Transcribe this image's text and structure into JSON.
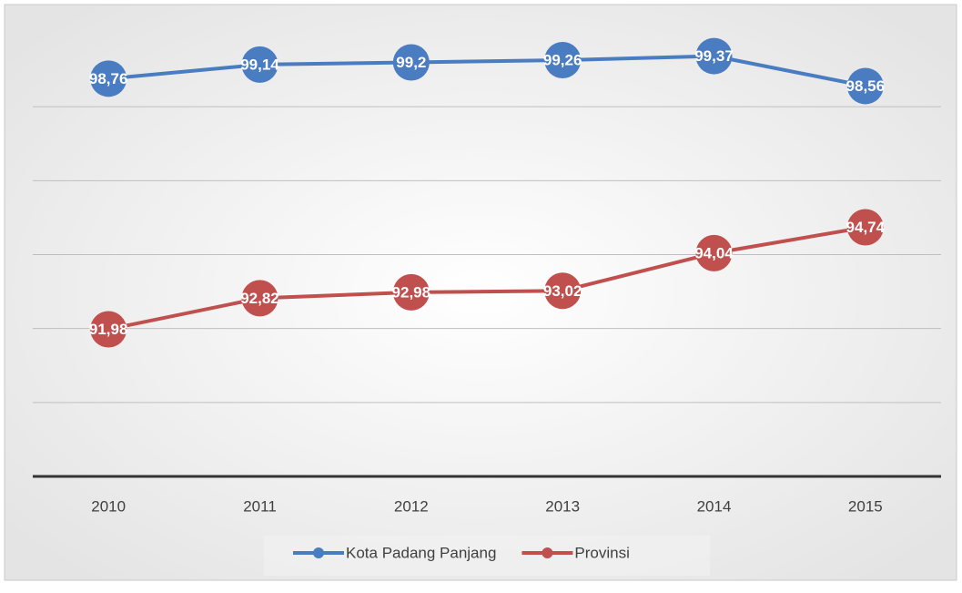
{
  "chart_data": {
    "type": "line",
    "categories": [
      "2010",
      "2011",
      "2012",
      "2013",
      "2014",
      "2015"
    ],
    "series": [
      {
        "name": "Kota Padang Panjang",
        "color": "#4a7cc1",
        "values": [
          98.76,
          99.14,
          99.2,
          99.26,
          99.37,
          98.56
        ],
        "value_labels": [
          "98,76",
          "99,14",
          "99,2",
          "99,26",
          "99,37",
          "98,56"
        ]
      },
      {
        "name": "Provinsi",
        "color": "#c0504d",
        "values": [
          91.98,
          92.82,
          92.98,
          93.02,
          94.04,
          94.74
        ],
        "value_labels": [
          "91,98",
          "92,82",
          "92,98",
          "93,02",
          "94,04",
          "94,74"
        ]
      }
    ],
    "ylim": [
      88,
      100
    ],
    "yticks": [
      88,
      90,
      92,
      94,
      96,
      98
    ],
    "grid": true,
    "legend": "bottom"
  }
}
